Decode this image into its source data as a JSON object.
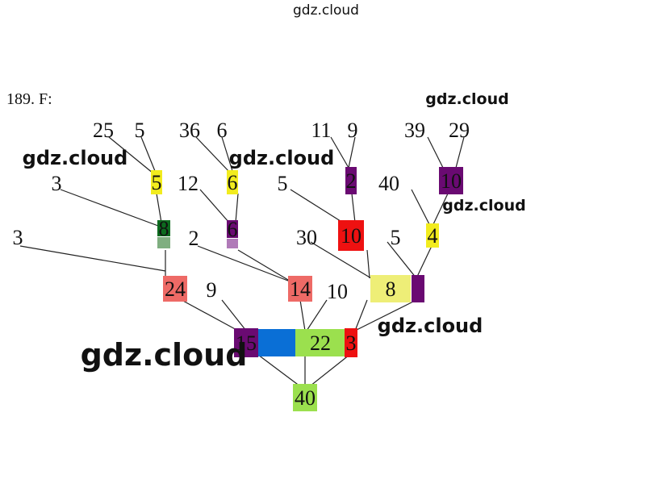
{
  "problem_label": "189. F:",
  "watermark": "gdz.cloud",
  "colors": {
    "yellow": "#f2ec1e",
    "purple": "#6a0a72",
    "dark_green": "#0c6a1e",
    "light_green": "#7fae80",
    "red": "#ee1111",
    "salmon": "#ee6a66",
    "blue": "#0a6fd6",
    "lime": "#9be04e",
    "light_purple": "#b07ab8",
    "pale_yellow": "#eeee77"
  },
  "labels": [
    "25",
    "5",
    "36",
    "6",
    "11",
    "9",
    "39",
    "29",
    "3",
    "12",
    "5",
    "40",
    "3",
    "2",
    "30",
    "5",
    "9",
    "10"
  ],
  "nodes": [
    "5",
    "6",
    "2",
    "10",
    "8",
    "6",
    "10",
    "4",
    "24",
    "14",
    "8",
    "",
    "15",
    "",
    "22",
    "3",
    "40"
  ]
}
